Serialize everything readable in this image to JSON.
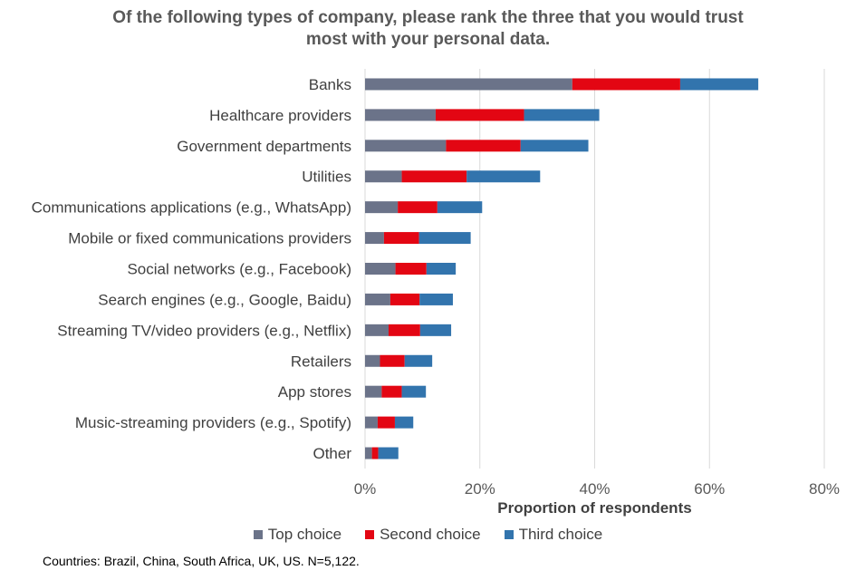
{
  "chart_data": {
    "type": "bar",
    "orientation": "horizontal",
    "stacked": true,
    "title": [
      "Of the following types of company, please rank the three that you would trust",
      "most with your personal data."
    ],
    "xlabel": "Proportion of respondents",
    "ylabel": "",
    "xlim": [
      0,
      80
    ],
    "xticks": [
      0,
      20,
      40,
      60,
      80
    ],
    "xtick_labels": [
      "0%",
      "20%",
      "40%",
      "60%",
      "80%"
    ],
    "grid": "vertical",
    "legend": "bottom",
    "categories": [
      "Banks",
      "Healthcare providers",
      "Government departments",
      "Utilities",
      "Communications applications (e.g., WhatsApp)",
      "Mobile or fixed communications providers",
      "Social networks (e.g., Facebook)",
      "Search engines (e.g., Google, Baidu)",
      "Streaming TV/video providers (e.g., Netflix)",
      "Retailers",
      "App stores",
      "Music-streaming providers (e.g., Spotify)",
      "Other"
    ],
    "series": [
      {
        "name": "Top choice",
        "color": "#6b7389",
        "values": [
          36.1,
          12.3,
          14.1,
          6.4,
          5.7,
          3.3,
          5.3,
          4.4,
          4.1,
          2.6,
          2.9,
          2.2,
          1.2
        ]
      },
      {
        "name": "Second choice",
        "color": "#e30613",
        "values": [
          18.8,
          15.4,
          13.0,
          11.3,
          6.9,
          6.1,
          5.4,
          5.1,
          5.5,
          4.3,
          3.5,
          3.0,
          1.1
        ]
      },
      {
        "name": "Third choice",
        "color": "#3274ad",
        "values": [
          13.6,
          13.1,
          11.8,
          12.8,
          7.8,
          9.0,
          5.1,
          5.8,
          5.4,
          4.8,
          4.2,
          3.2,
          3.5
        ]
      }
    ]
  },
  "footnote": "Countries: Brazil, China, South Africa, UK, US. N=5,122."
}
